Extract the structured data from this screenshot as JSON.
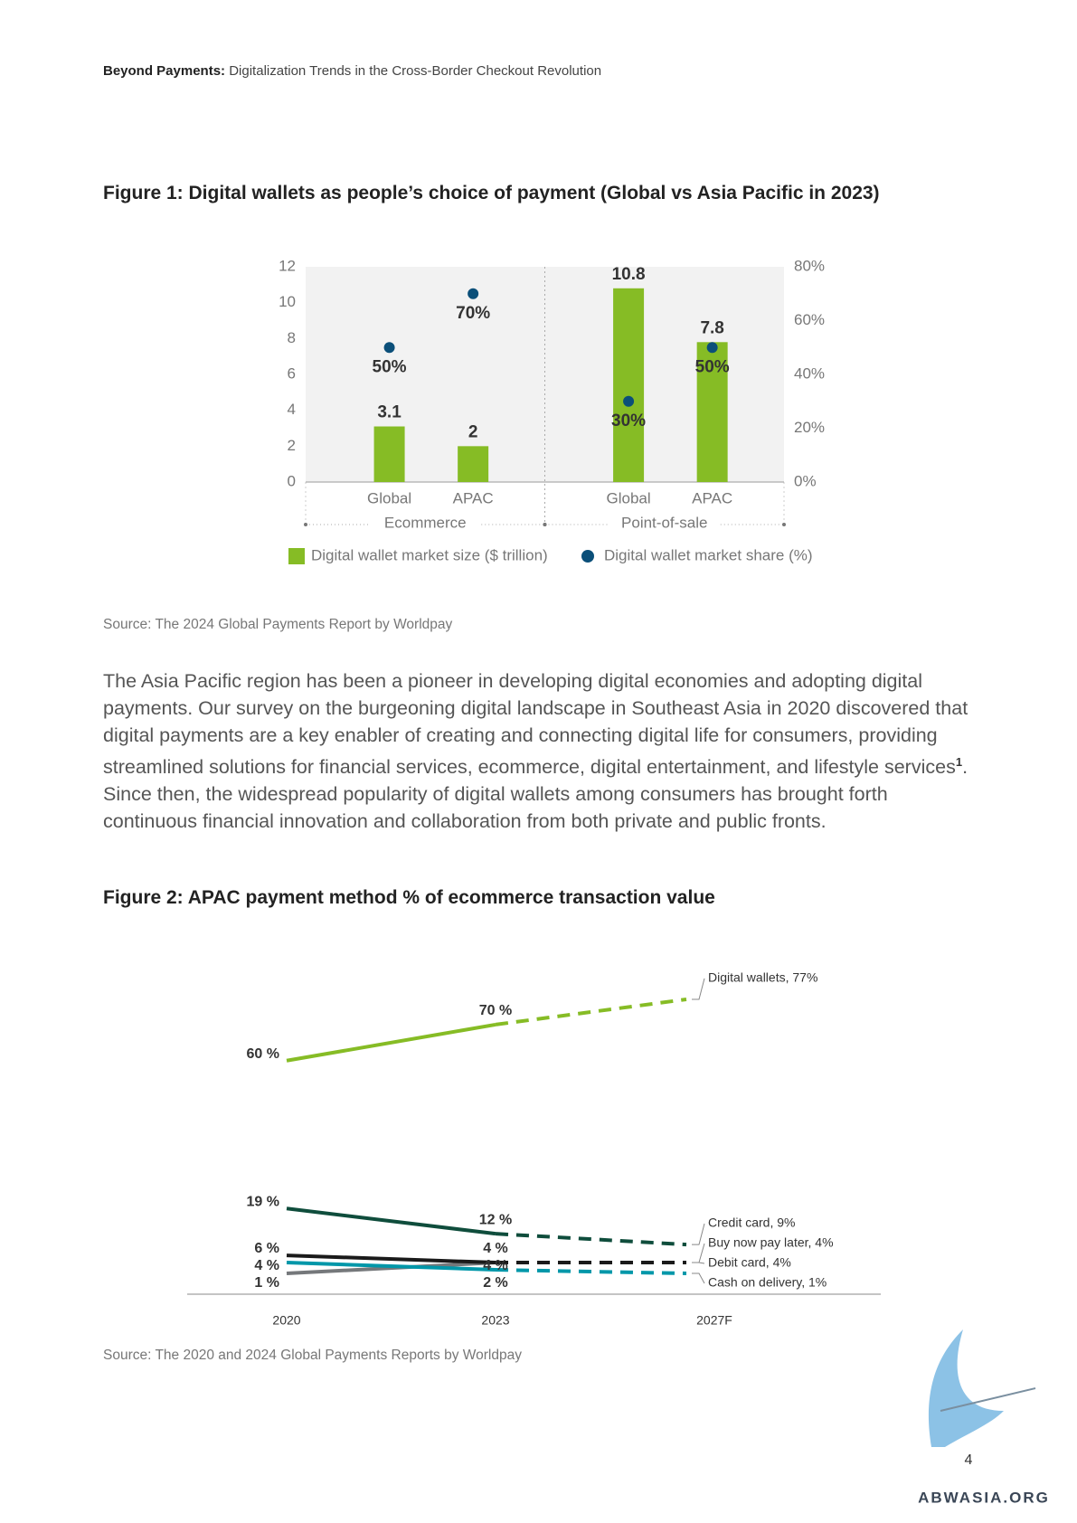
{
  "header": {
    "bold": "Beyond Payments:",
    "text": "Digitalization Trends in the Cross-Border Checkout Revolution"
  },
  "body": {
    "text_before": "The Asia Pacific region has been a pioneer in developing digital economies and adopting digital payments. Our survey on the burgeoning digital landscape in Southeast Asia in 2020 discovered that digital payments are a key enabler of creating and connecting digital life for consumers, providing streamlined solutions for financial services, ecommerce, digital entertainment, and lifestyle services",
    "footnote": "1",
    "text_after": ". Since then, the widespread popularity of digital wallets among consumers has brought forth continuous financial innovation and collaboration from both private and public fronts."
  },
  "page_number": "4",
  "watermark": "ABWASIA.ORG",
  "chart_data": [
    {
      "type": "bar",
      "title": "Figure 1: Digital wallets as people’s choice of payment (Global vs Asia Pacific in 2023)",
      "categories": [
        "Global",
        "APAC",
        "Global",
        "APAC"
      ],
      "groups": [
        "Ecommerce",
        "Point-of-sale"
      ],
      "series": [
        {
          "name": "Digital wallet market size ($ trillion)",
          "color": "#86bc25",
          "values": [
            3.1,
            2,
            10.8,
            7.8
          ]
        },
        {
          "name": "Digital wallet market share (%)",
          "type": "scatter",
          "axis": "y2",
          "color": "#0b4f79",
          "values": [
            50,
            70,
            30,
            50
          ],
          "value_labels": [
            "50%",
            "70%",
            "30%",
            "50%"
          ]
        }
      ],
      "ylim": [
        0,
        12
      ],
      "yticks": [
        0,
        2,
        4,
        6,
        8,
        10,
        12
      ],
      "y2lim": [
        0,
        80
      ],
      "y2ticks": [
        {
          "value": 0,
          "label": "0%"
        },
        {
          "value": 20,
          "label": "20%"
        },
        {
          "value": 40,
          "label": "40%"
        },
        {
          "value": 60,
          "label": "60%"
        },
        {
          "value": 80,
          "label": "80%"
        }
      ],
      "source": "Source: The 2024 Global Payments Report by Worldpay"
    },
    {
      "type": "line",
      "title": "Figure 2: APAC payment method % of ecommerce transaction value",
      "categories": [
        "2020",
        "2023",
        "2027F"
      ],
      "series": [
        {
          "color": "#75787b",
          "values": [
            1,
            4,
            4
          ],
          "value_labels": [
            "1 %",
            "4 %",
            "Buy now pay later, 4%"
          ]
        },
        {
          "color": "#0097a9",
          "values": [
            4,
            2,
            1
          ],
          "value_labels": [
            "4 %",
            "2 %",
            "Cash on delivery, 1%"
          ]
        },
        {
          "color": "#1a1a1a",
          "values": [
            6,
            4,
            4
          ],
          "value_labels": [
            "6 %",
            "4 %",
            "Debit card, 4%"
          ]
        },
        {
          "color": "#0f4d3c",
          "values": [
            19,
            12,
            9
          ],
          "value_labels": [
            "19 %",
            "12 %",
            "Credit card, 9%"
          ]
        },
        {
          "color": "#86bc25",
          "values": [
            60,
            70,
            77
          ],
          "value_labels": [
            "60 %",
            "70 %",
            "Digital wallets, 77%"
          ]
        }
      ],
      "source": "Source: The 2020 and 2024 Global Payments Reports by Worldpay"
    }
  ]
}
